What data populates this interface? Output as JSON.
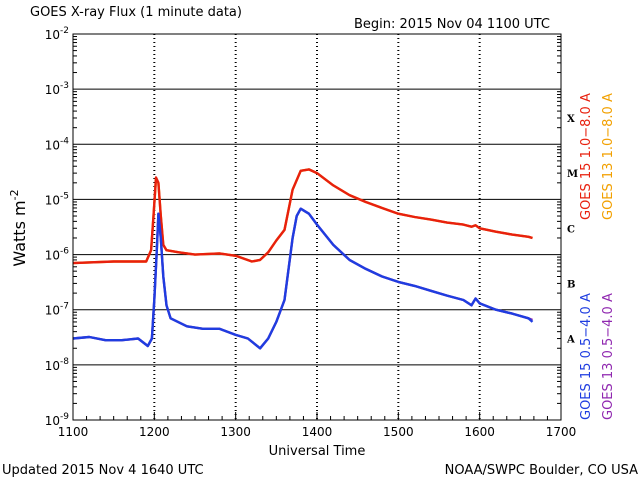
{
  "header": {
    "title": "GOES X-ray Flux (1 minute data)",
    "begin": "Begin: 2015 Nov 04 1100 UTC"
  },
  "footer": {
    "updated": "Updated 2015 Nov  4 1640 UTC",
    "credit": "NOAA/SWPC Boulder, CO USA"
  },
  "colors": {
    "goes15_long": "#e8200e",
    "goes13_long": "#f2a000",
    "goes15_short": "#1f3de0",
    "goes13_short": "#9028b0",
    "grid": "#000000"
  },
  "chart_data": {
    "type": "line",
    "title": "GOES X-ray Flux (1 minute data)",
    "xlabel": "Universal Time",
    "ylabel": "Watts m",
    "ylabel_sup": "-2",
    "xlim": [
      1100,
      1700
    ],
    "ylim": [
      1e-09,
      0.01
    ],
    "yscale": "log",
    "x_ticks": [
      "1100",
      "1200",
      "1300",
      "1400",
      "1500",
      "1600",
      "1700"
    ],
    "y_ticks": [
      {
        "base": "10",
        "exp": "-9",
        "value": 1e-09
      },
      {
        "base": "10",
        "exp": "-8",
        "value": 1e-08
      },
      {
        "base": "10",
        "exp": "-7",
        "value": 1e-07
      },
      {
        "base": "10",
        "exp": "-6",
        "value": 1e-06
      },
      {
        "base": "10",
        "exp": "-5",
        "value": 1e-05
      },
      {
        "base": "10",
        "exp": "-4",
        "value": 0.0001
      },
      {
        "base": "10",
        "exp": "-3",
        "value": 0.001
      },
      {
        "base": "10",
        "exp": "-2",
        "value": 0.01
      }
    ],
    "grid": true,
    "flare_classes": [
      {
        "label": "X",
        "value": 0.0003
      },
      {
        "label": "M",
        "value": 3e-05
      },
      {
        "label": "C",
        "value": 3e-06
      },
      {
        "label": "B",
        "value": 3e-07
      },
      {
        "label": "A",
        "value": 3e-08
      }
    ],
    "legend": [
      {
        "label": "GOES 15 1.0−8.0 A",
        "color_key": "goes15_long"
      },
      {
        "label": "GOES 13 1.0−8.0 A",
        "color_key": "goes13_long"
      },
      {
        "label": "GOES 15 0.5−4.0 A",
        "color_key": "goes15_short"
      },
      {
        "label": "GOES 13 0.5−4.0 A",
        "color_key": "goes13_short"
      }
    ],
    "series": [
      {
        "name": "GOES 13 1.0−8.0 A",
        "color_key": "goes13_long",
        "x": [
          1100,
          1150,
          1190,
          1196,
          1199,
          1202,
          1205,
          1208,
          1211,
          1215,
          1230,
          1250,
          1280,
          1300,
          1320,
          1330,
          1340,
          1350,
          1360,
          1370,
          1380,
          1390,
          1400,
          1420,
          1440,
          1460,
          1480,
          1500,
          1520,
          1540,
          1560,
          1580,
          1590,
          1595,
          1600,
          1620,
          1640,
          1660,
          1665
        ],
        "y": [
          7e-07,
          7.5e-07,
          7.5e-07,
          1.2e-06,
          5e-06,
          2.4e-05,
          2e-05,
          5e-06,
          1.5e-06,
          1.2e-06,
          1.1e-06,
          1e-06,
          1.05e-06,
          9.5e-07,
          7.5e-07,
          8e-07,
          1.1e-06,
          1.8e-06,
          2.8e-06,
          1.5e-05,
          3.3e-05,
          3.5e-05,
          3e-05,
          1.8e-05,
          1.2e-05,
          9e-06,
          7e-06,
          5.5e-06,
          4.8e-06,
          4.3e-06,
          3.8e-06,
          3.5e-06,
          3.2e-06,
          3.4e-06,
          3e-06,
          2.6e-06,
          2.3e-06,
          2.1e-06,
          2e-06
        ]
      },
      {
        "name": "GOES 15 1.0−8.0 A",
        "color_key": "goes15_long",
        "x": [
          1100,
          1150,
          1190,
          1196,
          1199,
          1202,
          1205,
          1208,
          1211,
          1215,
          1230,
          1250,
          1280,
          1300,
          1320,
          1330,
          1340,
          1350,
          1360,
          1370,
          1380,
          1390,
          1400,
          1420,
          1440,
          1460,
          1480,
          1500,
          1520,
          1540,
          1560,
          1580,
          1590,
          1595,
          1600,
          1620,
          1640,
          1660,
          1665
        ],
        "y": [
          7e-07,
          7.5e-07,
          7.5e-07,
          1.2e-06,
          5e-06,
          2.5e-05,
          2e-05,
          5e-06,
          1.5e-06,
          1.2e-06,
          1.1e-06,
          1e-06,
          1.05e-06,
          9.5e-07,
          7.5e-07,
          8e-07,
          1.1e-06,
          1.8e-06,
          2.8e-06,
          1.5e-05,
          3.3e-05,
          3.5e-05,
          3e-05,
          1.8e-05,
          1.2e-05,
          9e-06,
          7e-06,
          5.5e-06,
          4.8e-06,
          4.3e-06,
          3.8e-06,
          3.5e-06,
          3.2e-06,
          3.4e-06,
          3e-06,
          2.6e-06,
          2.3e-06,
          2.1e-06,
          2e-06
        ]
      },
      {
        "name": "GOES 13 0.5−4.0 A",
        "color_key": "goes13_short",
        "x": [
          1100,
          1120,
          1140,
          1160,
          1180,
          1192,
          1197,
          1200,
          1203,
          1205,
          1208,
          1211,
          1215,
          1220,
          1240,
          1260,
          1280,
          1300,
          1315,
          1330,
          1340,
          1350,
          1360,
          1370,
          1375,
          1380,
          1390,
          1400,
          1420,
          1440,
          1460,
          1480,
          1500,
          1520,
          1540,
          1560,
          1580,
          1590,
          1595,
          1600,
          1620,
          1640,
          1660,
          1665
        ],
        "y": [
          3e-08,
          3.2e-08,
          2.8e-08,
          2.8e-08,
          3e-08,
          2.2e-08,
          3e-08,
          1.5e-07,
          1.2e-06,
          5.5e-06,
          2e-06,
          4e-07,
          1.2e-07,
          7e-08,
          5e-08,
          4.5e-08,
          4.5e-08,
          3.5e-08,
          3e-08,
          2e-08,
          3e-08,
          6e-08,
          1.5e-07,
          2e-06,
          5e-06,
          6.8e-06,
          5.5e-06,
          3.5e-06,
          1.5e-06,
          8e-07,
          5.5e-07,
          4e-07,
          3.2e-07,
          2.7e-07,
          2.2e-07,
          1.8e-07,
          1.5e-07,
          1.2e-07,
          1.6e-07,
          1.3e-07,
          1e-07,
          8.5e-08,
          7e-08,
          6.5e-08
        ]
      },
      {
        "name": "GOES 15 0.5−4.0 A",
        "color_key": "goes15_short",
        "x": [
          1100,
          1120,
          1140,
          1160,
          1180,
          1192,
          1197,
          1200,
          1203,
          1205,
          1208,
          1211,
          1215,
          1220,
          1240,
          1260,
          1280,
          1300,
          1315,
          1330,
          1340,
          1350,
          1360,
          1370,
          1375,
          1380,
          1390,
          1400,
          1420,
          1440,
          1460,
          1480,
          1500,
          1520,
          1540,
          1560,
          1580,
          1590,
          1595,
          1600,
          1620,
          1640,
          1660,
          1665
        ],
        "y": [
          3e-08,
          3.2e-08,
          2.8e-08,
          2.8e-08,
          3e-08,
          2.2e-08,
          3e-08,
          1.5e-07,
          1.2e-06,
          5.5e-06,
          2e-06,
          4e-07,
          1.2e-07,
          7e-08,
          5e-08,
          4.5e-08,
          4.5e-08,
          3.5e-08,
          3e-08,
          2e-08,
          3e-08,
          6e-08,
          1.5e-07,
          2e-06,
          5e-06,
          6.8e-06,
          5.5e-06,
          3.5e-06,
          1.5e-06,
          8e-07,
          5.5e-07,
          4e-07,
          3.2e-07,
          2.7e-07,
          2.2e-07,
          1.8e-07,
          1.5e-07,
          1.2e-07,
          1.6e-07,
          1.3e-07,
          1e-07,
          8.5e-08,
          7e-08,
          6e-08
        ]
      }
    ]
  }
}
